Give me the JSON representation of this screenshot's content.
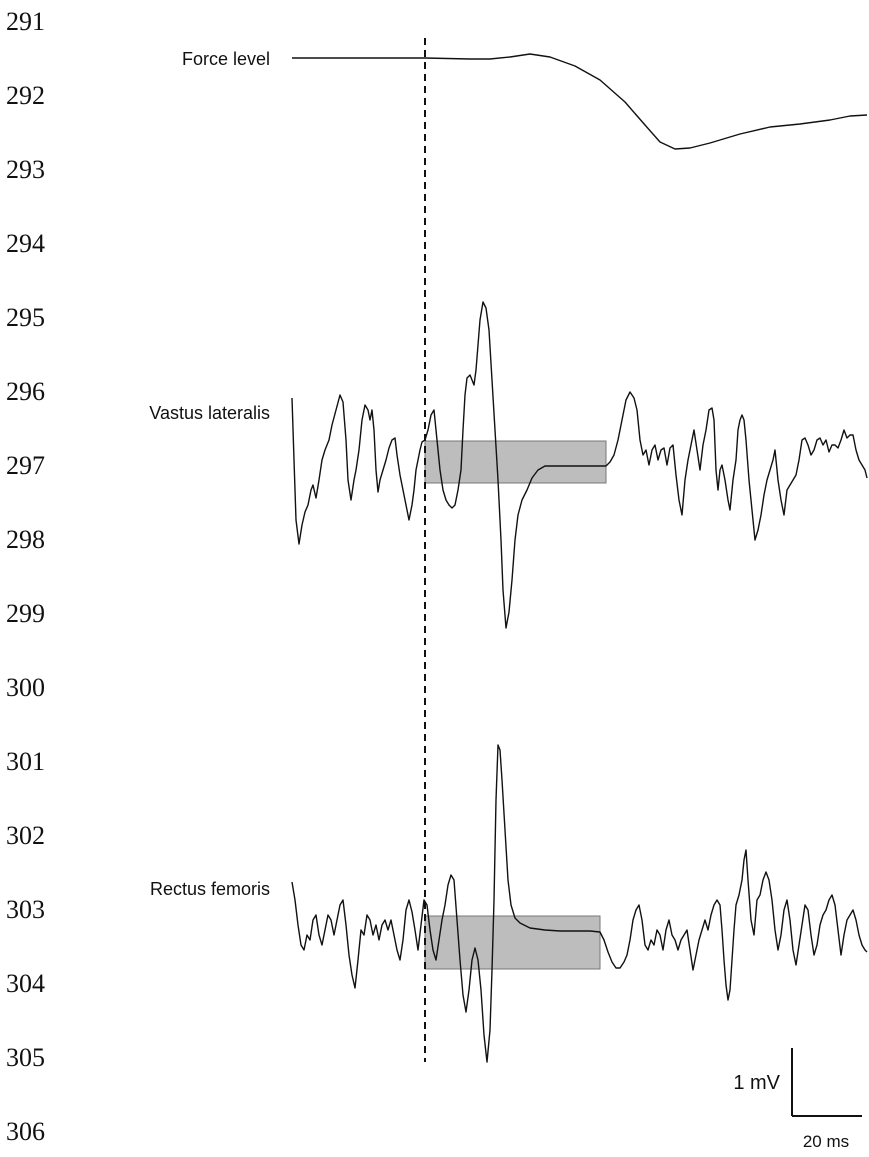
{
  "line_numbers": [
    "291",
    "292",
    "293",
    "294",
    "295",
    "296",
    "297",
    "298",
    "299",
    "300",
    "301",
    "302",
    "303",
    "304",
    "305",
    "306"
  ],
  "labels": {
    "force": "Force level",
    "vastus": "Vastus lateralis",
    "rectus": "Rectus femoris"
  },
  "scale_bar": {
    "amplitude": "1 mV",
    "time": "20 ms"
  },
  "colors": {
    "trace": "#111111",
    "window_fill": "#bdbdbd",
    "onset_marker": "#111111"
  }
}
